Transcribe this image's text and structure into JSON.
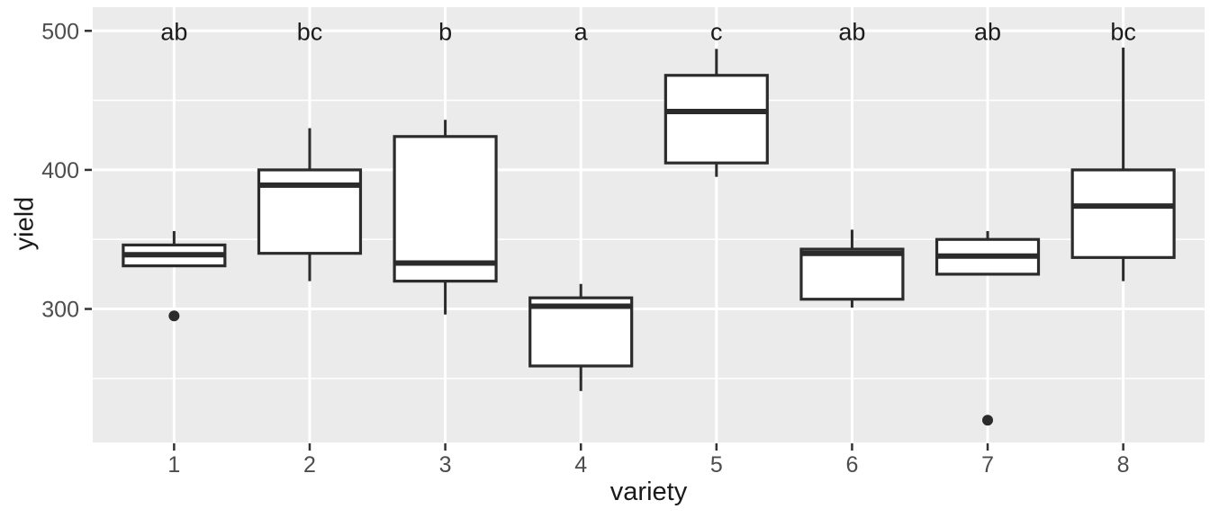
{
  "chart_data": {
    "type": "boxplot",
    "title": "",
    "xlabel": "variety",
    "ylabel": "yield",
    "categories": [
      "1",
      "2",
      "3",
      "4",
      "5",
      "6",
      "7",
      "8"
    ],
    "significance_letters": [
      "ab",
      "bc",
      "b",
      "a",
      "c",
      "ab",
      "ab",
      "bc"
    ],
    "letters_y": 500,
    "y_ticks": [
      300,
      400,
      500
    ],
    "y_minor_ticks": [
      250,
      350,
      450
    ],
    "ylim": [
      204,
      517
    ],
    "grid": "on",
    "legend": "none",
    "boxes": [
      {
        "category": "1",
        "letter": "ab",
        "whisker_low": 331,
        "q1": 331,
        "median": 339,
        "q3": 346,
        "whisker_high": 356,
        "outliers": [
          295
        ]
      },
      {
        "category": "2",
        "letter": "bc",
        "whisker_low": 320,
        "q1": 340,
        "median": 389,
        "q3": 400,
        "whisker_high": 430,
        "outliers": []
      },
      {
        "category": "3",
        "letter": "b",
        "whisker_low": 296,
        "q1": 320,
        "median": 333,
        "q3": 424,
        "whisker_high": 436,
        "outliers": []
      },
      {
        "category": "4",
        "letter": "a",
        "whisker_low": 241,
        "q1": 259,
        "median": 302,
        "q3": 308,
        "whisker_high": 318,
        "outliers": []
      },
      {
        "category": "5",
        "letter": "c",
        "whisker_low": 395,
        "q1": 405,
        "median": 442,
        "q3": 468,
        "whisker_high": 487,
        "outliers": []
      },
      {
        "category": "6",
        "letter": "ab",
        "whisker_low": 301,
        "q1": 307,
        "median": 340,
        "q3": 343,
        "whisker_high": 357,
        "outliers": []
      },
      {
        "category": "7",
        "letter": "ab",
        "whisker_low": 325,
        "q1": 325,
        "median": 338,
        "q3": 350,
        "whisker_high": 356,
        "outliers": [
          220
        ]
      },
      {
        "category": "8",
        "letter": "bc",
        "whisker_low": 320,
        "q1": 337,
        "median": 374,
        "q3": 400,
        "whisker_high": 488,
        "outliers": []
      }
    ],
    "colors": {
      "panel": "#EBEBEB",
      "gridline": "#FFFFFF",
      "box_fill": "#FFFFFF",
      "box_border": "#2b2b2b",
      "tick_text": "#4d4d4d",
      "title_text": "#1a1a1a",
      "letter_text": "#1a1a1a"
    }
  }
}
